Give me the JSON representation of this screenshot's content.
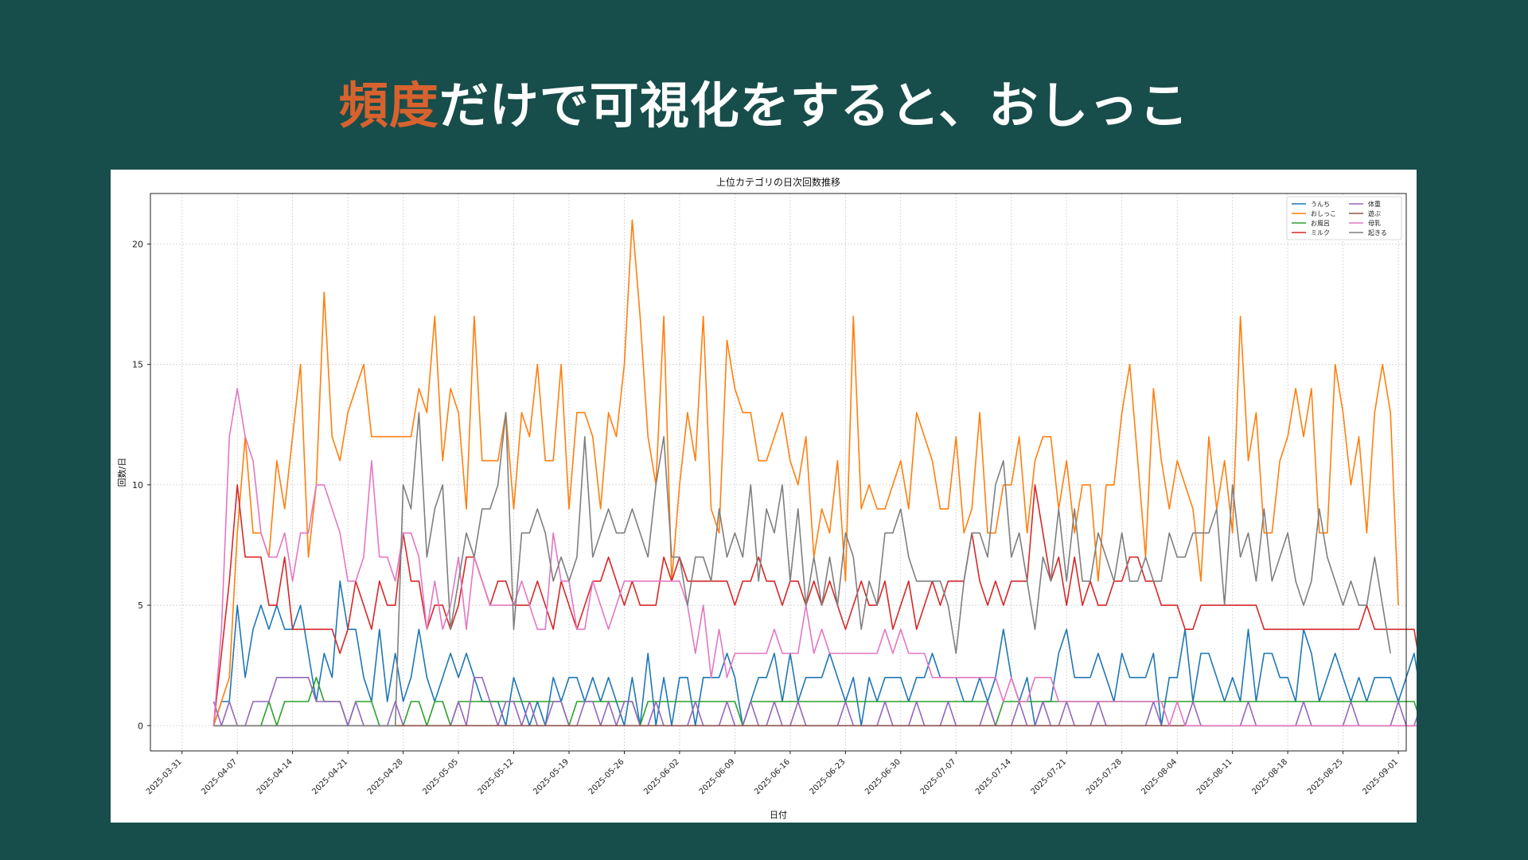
{
  "slide": {
    "title_accent": "頻度",
    "title_rest": "だけで可視化をすると、おしっこ"
  },
  "colors": {
    "background": "#174d4a",
    "accent": "#d8622e"
  },
  "chart_data": {
    "type": "line",
    "title": "上位カテゴリの日次回数推移",
    "xlabel": "日付",
    "ylabel": "回数/日",
    "ylim": [
      -1.05,
      22.1
    ],
    "xlim": [
      "2025-03-27",
      "2025-09-02"
    ],
    "yticks": [
      0,
      5,
      10,
      15,
      20
    ],
    "xticks": [
      "2025-03-31",
      "2025-04-07",
      "2025-04-14",
      "2025-04-21",
      "2025-04-28",
      "2025-05-05",
      "2025-05-12",
      "2025-05-19",
      "2025-05-26",
      "2025-06-02",
      "2025-06-09",
      "2025-06-16",
      "2025-06-23",
      "2025-06-30",
      "2025-07-07",
      "2025-07-14",
      "2025-07-21",
      "2025-07-28",
      "2025-08-04",
      "2025-08-11",
      "2025-08-18",
      "2025-08-25",
      "2025-09-01"
    ],
    "grid": true,
    "legend_position": "top-right",
    "start_date": "2025-04-04",
    "series": [
      {
        "name": "うんち",
        "color": "#1f77b4",
        "values": [
          0,
          1,
          1,
          5,
          2,
          4,
          5,
          4,
          5,
          4,
          4,
          5,
          3,
          1,
          3,
          2,
          6,
          4,
          4,
          2,
          1,
          4,
          1,
          3,
          1,
          2,
          4,
          2,
          1,
          2,
          3,
          2,
          3,
          2,
          1,
          1,
          1,
          0,
          2,
          1,
          0,
          1,
          0,
          2,
          1,
          2,
          2,
          1,
          2,
          1,
          2,
          1,
          0,
          2,
          0,
          3,
          0,
          2,
          0,
          2,
          2,
          0,
          2,
          2,
          2,
          3,
          2,
          0,
          1,
          2,
          2,
          3,
          1,
          3,
          1,
          2,
          2,
          2,
          3,
          2,
          1,
          2,
          0,
          2,
          1,
          2,
          2,
          2,
          1,
          2,
          2,
          3,
          2,
          2,
          2,
          1,
          1,
          2,
          1,
          2,
          4,
          2,
          1,
          2,
          0,
          1,
          1,
          3,
          4,
          2,
          2,
          2,
          3,
          2,
          1,
          3,
          2,
          2,
          2,
          3,
          0,
          2,
          2,
          4,
          1,
          3,
          3,
          2,
          1,
          2,
          1,
          4,
          1,
          3,
          3,
          2,
          2,
          1,
          4,
          3,
          1,
          2,
          3,
          2,
          1,
          2,
          1,
          2,
          2,
          2,
          1,
          2,
          3,
          1
        ]
      },
      {
        "name": "おしっこ",
        "color": "#ff7f0e",
        "values": [
          0,
          1,
          2,
          8,
          12,
          8,
          8,
          7,
          11,
          9,
          12,
          15,
          7,
          10,
          18,
          12,
          11,
          13,
          14,
          15,
          12,
          12,
          12,
          12,
          12,
          12,
          14,
          13,
          17,
          11,
          14,
          13,
          9,
          17,
          11,
          11,
          11,
          13,
          9,
          13,
          12,
          15,
          11,
          11,
          15,
          9,
          13,
          13,
          12,
          9,
          13,
          12,
          15,
          21,
          17,
          12,
          10,
          17,
          6,
          10,
          13,
          11,
          17,
          9,
          8,
          16,
          14,
          13,
          13,
          11,
          11,
          12,
          13,
          11,
          10,
          12,
          7,
          9,
          8,
          11,
          6,
          17,
          9,
          10,
          9,
          9,
          10,
          11,
          9,
          13,
          12,
          11,
          9,
          9,
          12,
          8,
          9,
          13,
          8,
          8,
          10,
          10,
          12,
          8,
          11,
          12,
          12,
          9,
          11,
          8,
          10,
          10,
          6,
          10,
          10,
          13,
          15,
          11,
          7,
          14,
          11,
          9,
          11,
          10,
          9,
          6,
          12,
          9,
          11,
          8,
          17,
          11,
          13,
          8,
          8,
          11,
          12,
          14,
          12,
          14,
          8,
          8,
          15,
          13,
          10,
          12,
          8,
          13,
          15,
          13,
          5
        ]
      },
      {
        "name": "お風呂",
        "color": "#2ca02c",
        "values": [
          0,
          0,
          0,
          0,
          0,
          0,
          0,
          1,
          0,
          1,
          1,
          1,
          1,
          2,
          1,
          1,
          1,
          0,
          1,
          1,
          1,
          0,
          0,
          0,
          0,
          1,
          1,
          0,
          1,
          1,
          0,
          1,
          1,
          1,
          1,
          1,
          1,
          1,
          1,
          1,
          1,
          1,
          1,
          1,
          1,
          0,
          1,
          1,
          1,
          1,
          1,
          1,
          1,
          1,
          0,
          1,
          1,
          1,
          1,
          1,
          1,
          1,
          1,
          1,
          1,
          1,
          1,
          0,
          1,
          1,
          1,
          1,
          1,
          1,
          1,
          1,
          1,
          1,
          1,
          1,
          1,
          1,
          1,
          1,
          1,
          1,
          1,
          1,
          1,
          1,
          1,
          1,
          1,
          1,
          1,
          1,
          1,
          1,
          1,
          0,
          1,
          1,
          1,
          1,
          1,
          1,
          1,
          1,
          1,
          1,
          1,
          1,
          1,
          1,
          1,
          1,
          1,
          1,
          1,
          1,
          1,
          1,
          1,
          1,
          1,
          1,
          1,
          1,
          1,
          1,
          1,
          1,
          1,
          1,
          1,
          1,
          1,
          1,
          1,
          1,
          1,
          1,
          1,
          1,
          1,
          1,
          1,
          1,
          1,
          1,
          1,
          1,
          1,
          0
        ]
      },
      {
        "name": "ミルク",
        "color": "#d62728",
        "values": [
          0,
          3,
          6,
          10,
          7,
          7,
          7,
          5,
          5,
          7,
          4,
          4,
          4,
          4,
          4,
          4,
          3,
          4,
          6,
          5,
          4,
          6,
          5,
          5,
          8,
          6,
          6,
          4,
          5,
          5,
          4,
          5,
          7,
          7,
          6,
          5,
          6,
          6,
          5,
          5,
          5,
          6,
          5,
          4,
          6,
          5,
          4,
          5,
          6,
          6,
          7,
          6,
          5,
          6,
          5,
          5,
          5,
          7,
          6,
          7,
          6,
          6,
          6,
          6,
          6,
          6,
          5,
          6,
          6,
          7,
          6,
          6,
          5,
          6,
          6,
          5,
          6,
          5,
          6,
          5,
          4,
          5,
          6,
          5,
          5,
          6,
          4,
          5,
          6,
          4,
          5,
          6,
          5,
          6,
          6,
          6,
          8,
          6,
          5,
          6,
          5,
          6,
          6,
          6,
          10,
          8,
          6,
          7,
          5,
          7,
          5,
          6,
          5,
          5,
          6,
          6,
          7,
          7,
          6,
          6,
          5,
          5,
          5,
          4,
          4,
          5,
          5,
          5,
          5,
          5,
          5,
          5,
          5,
          4,
          4,
          4,
          4,
          4,
          4,
          4,
          4,
          4,
          4,
          4,
          4,
          4,
          5,
          4,
          4,
          4,
          4,
          4,
          4,
          2
        ]
      },
      {
        "name": "体重",
        "color": "#9467bd",
        "values": [
          1,
          0,
          1,
          0,
          0,
          1,
          1,
          1,
          2,
          2,
          2,
          2,
          2,
          1,
          1,
          1,
          1,
          0,
          1,
          0,
          0,
          0,
          0,
          1,
          0,
          0,
          0,
          0,
          0,
          0,
          0,
          1,
          0,
          2,
          2,
          1,
          0,
          1,
          1,
          0,
          1,
          0,
          0,
          1,
          1,
          0,
          0,
          1,
          1,
          0,
          1,
          0,
          1,
          1,
          0,
          0,
          1,
          0,
          0,
          0,
          0,
          1,
          0,
          0,
          0,
          1,
          0,
          0,
          1,
          0,
          0,
          1,
          0,
          0,
          1,
          0,
          0,
          0,
          0,
          0,
          1,
          0,
          0,
          0,
          0,
          1,
          0,
          0,
          0,
          1,
          0,
          0,
          0,
          1,
          0,
          0,
          0,
          0,
          1,
          0,
          0,
          0,
          1,
          0,
          0,
          1,
          0,
          0,
          1,
          0,
          0,
          0,
          1,
          0,
          0,
          0,
          0,
          0,
          0,
          1,
          0,
          0,
          0,
          0,
          1,
          0,
          0,
          0,
          0,
          0,
          0,
          1,
          0,
          0,
          0,
          0,
          0,
          0,
          1,
          0,
          0,
          0,
          0,
          0,
          1,
          0,
          0,
          0,
          0,
          0,
          1,
          0,
          0,
          1
        ]
      },
      {
        "name": "遊ぶ",
        "color": "#8c564b",
        "values": [
          0,
          0,
          0,
          0,
          0,
          0,
          0,
          0,
          0,
          0,
          0,
          0,
          0,
          0,
          0,
          0,
          0,
          0,
          0,
          0,
          0,
          0,
          0,
          0,
          0,
          0,
          0,
          0,
          0,
          0,
          0,
          0,
          0,
          0,
          0,
          0,
          0,
          0,
          0,
          0,
          0,
          0,
          0,
          0,
          0,
          0,
          0,
          0,
          0,
          0,
          0,
          0,
          0,
          0,
          0,
          0,
          0,
          0,
          0,
          0,
          0,
          0,
          0,
          0,
          0,
          0,
          0,
          0,
          0,
          0,
          0,
          0,
          0,
          0,
          0,
          0,
          0,
          0,
          0,
          0,
          0,
          0,
          0,
          0,
          0,
          0,
          0,
          0,
          0,
          0,
          0,
          0,
          0,
          0,
          0,
          0,
          0,
          0,
          0,
          0,
          0,
          0,
          0,
          0,
          0,
          0,
          0,
          0,
          0,
          0,
          0,
          0,
          0,
          0,
          0,
          0,
          0,
          0,
          0,
          0,
          0,
          0,
          0,
          0,
          0,
          0,
          0,
          0,
          0,
          0,
          0,
          0,
          0,
          0,
          0,
          0,
          0,
          0,
          0,
          0,
          0,
          0,
          0,
          0,
          0,
          0,
          0,
          0,
          0,
          0,
          0,
          0,
          0,
          0
        ]
      },
      {
        "name": "母乳",
        "color": "#e377c2",
        "values": [
          0,
          4,
          12,
          14,
          12,
          11,
          8,
          7,
          7,
          8,
          6,
          8,
          8,
          10,
          10,
          9,
          8,
          6,
          6,
          7,
          11,
          7,
          7,
          6,
          8,
          8,
          7,
          4,
          6,
          4,
          5,
          7,
          4,
          7,
          6,
          5,
          5,
          5,
          5,
          6,
          5,
          4,
          4,
          8,
          6,
          6,
          4,
          4,
          6,
          5,
          4,
          5,
          6,
          6,
          6,
          6,
          6,
          6,
          6,
          6,
          5,
          3,
          5,
          2,
          4,
          2,
          3,
          3,
          3,
          3,
          3,
          4,
          3,
          3,
          3,
          5,
          3,
          4,
          3,
          3,
          3,
          3,
          3,
          3,
          3,
          4,
          3,
          4,
          3,
          3,
          3,
          2,
          2,
          2,
          2,
          2,
          2,
          2,
          2,
          2,
          1,
          2,
          1,
          1,
          2,
          2,
          2,
          1,
          1,
          1,
          1,
          1,
          1,
          1,
          1,
          1,
          1,
          1,
          1,
          1,
          1,
          0,
          1,
          0,
          0,
          0,
          0,
          0,
          0,
          0,
          0,
          0,
          0,
          0,
          0,
          0,
          0,
          0,
          0,
          0,
          0,
          0,
          0,
          0,
          0,
          0,
          0,
          0,
          0,
          0,
          0,
          0,
          0,
          0
        ]
      },
      {
        "name": "起きる",
        "color": "#7f7f7f",
        "values": [
          0,
          0,
          0,
          0,
          0,
          0,
          0,
          0,
          0,
          0,
          0,
          0,
          0,
          0,
          0,
          0,
          0,
          0,
          0,
          0,
          0,
          0,
          0,
          0,
          10,
          9,
          13,
          7,
          9,
          10,
          4,
          6,
          8,
          7,
          9,
          9,
          10,
          13,
          4,
          8,
          8,
          9,
          8,
          6,
          7,
          6,
          7,
          12,
          7,
          8,
          9,
          8,
          8,
          9,
          8,
          7,
          10,
          12,
          7,
          7,
          5,
          7,
          7,
          6,
          9,
          7,
          8,
          7,
          10,
          6,
          9,
          8,
          10,
          6,
          9,
          5,
          7,
          5,
          7,
          5,
          8,
          7,
          4,
          6,
          5,
          8,
          8,
          9,
          7,
          6,
          6,
          6,
          6,
          5,
          3,
          6,
          8,
          8,
          7,
          10,
          11,
          7,
          8,
          6,
          4,
          7,
          6,
          9,
          6,
          9,
          6,
          6,
          8,
          7,
          6,
          8,
          6,
          6,
          7,
          6,
          6,
          8,
          7,
          7,
          8,
          8,
          8,
          9,
          5,
          10,
          7,
          8,
          6,
          9,
          6,
          7,
          8,
          6,
          5,
          6,
          9,
          7,
          6,
          5,
          6,
          5,
          5,
          7,
          5,
          3
        ]
      }
    ]
  }
}
